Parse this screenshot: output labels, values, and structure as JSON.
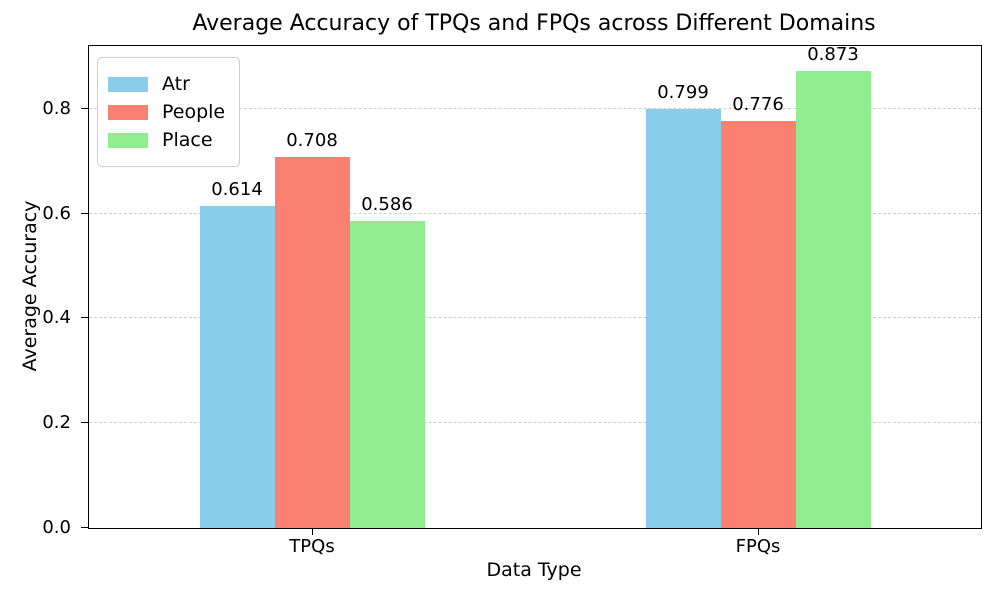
{
  "chart_data": {
    "type": "bar",
    "title": "Average Accuracy of TPQs and FPQs across Different Domains",
    "xlabel": "Data Type",
    "ylabel": "Average Accuracy",
    "categories": [
      "TPQs",
      "FPQs"
    ],
    "series": [
      {
        "name": "Atr",
        "color": "#87CEEB",
        "values": [
          0.614,
          0.799
        ]
      },
      {
        "name": "People",
        "color": "#FA8072",
        "values": [
          0.708,
          0.776
        ]
      },
      {
        "name": "Place",
        "color": "#90EE90",
        "values": [
          0.586,
          0.873
        ]
      }
    ],
    "yticks": [
      0.0,
      0.2,
      0.4,
      0.6,
      0.8
    ],
    "ylim": [
      0,
      0.92
    ],
    "value_label_decimals": 3,
    "grid": "horizontal-dashed",
    "grid_color": "#cfcfcf",
    "legend_position": "upper-left",
    "background_color": "#ffffff",
    "text_color": "#000000"
  }
}
